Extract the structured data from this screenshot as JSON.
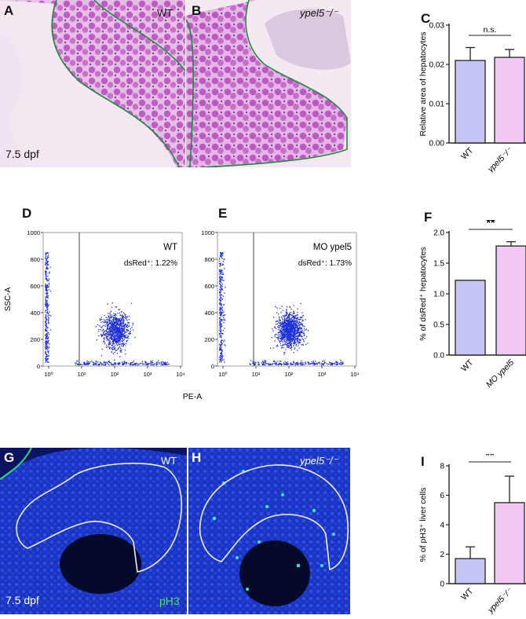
{
  "panels": {
    "A": {
      "letter": "A",
      "genotype": "WT",
      "stage": "7.5 dpf"
    },
    "B": {
      "letter": "B",
      "genotype": "ypel5⁻/⁻"
    },
    "C": {
      "letter": "C"
    },
    "D": {
      "letter": "D",
      "genotype": "WT",
      "stat": "dsRed⁺: 1.22%"
    },
    "E": {
      "letter": "E",
      "genotype": "MO ypel5",
      "stat": "dsRed⁺: 1.73%"
    },
    "F": {
      "letter": "F"
    },
    "G": {
      "letter": "G",
      "genotype": "WT",
      "stage": "7.5 dpf",
      "stain": "pH3"
    },
    "H": {
      "letter": "H",
      "genotype": "ypel5⁻/⁻"
    },
    "I": {
      "letter": "I"
    }
  },
  "flow": {
    "ylabel": "SSC-A",
    "xlabel": "PE-A",
    "yticks": [
      "0",
      "200",
      "400",
      "600",
      "800",
      "1000"
    ],
    "xticks": [
      "10⁰",
      "10¹",
      "10²",
      "10³",
      "10⁴"
    ]
  },
  "colors": {
    "wt_bar": "#c6c5f7",
    "mut_bar": "#f1c8f1",
    "he_stain": "#c75cc6",
    "flow_dots": "#1d2fd8",
    "dapi": "#1b36c4",
    "ph3": "#3fe6c8"
  },
  "chart_data": [
    {
      "id": "C",
      "type": "bar",
      "categories": [
        "WT",
        "ypel5⁻/⁻"
      ],
      "values": [
        0.021,
        0.0218
      ],
      "errors": [
        0.0033,
        0.002
      ],
      "ylabel": "Relative area of hepatocytes",
      "yticks": [
        "0.00",
        "0.01",
        "0.02",
        "0.03"
      ],
      "ylim": [
        0,
        0.03
      ],
      "significance": "n.s."
    },
    {
      "id": "F",
      "type": "bar",
      "categories": [
        "WT",
        "MO ypel5"
      ],
      "values": [
        1.22,
        1.78
      ],
      "errors": [
        0,
        0.07
      ],
      "ylabel": "% of dsRed⁺ hepatocytes",
      "yticks": [
        "0.0",
        "0.5",
        "1.0",
        "1.5",
        "2.0"
      ],
      "ylim": [
        0,
        2.0
      ],
      "significance": "**"
    },
    {
      "id": "I",
      "type": "bar",
      "categories": [
        "WT",
        "ypel5⁻/⁻"
      ],
      "values": [
        1.7,
        5.5
      ],
      "errors": [
        0.8,
        1.8
      ],
      "ylabel": "% of pH3⁺ liver cells",
      "yticks": [
        "0",
        "2",
        "4",
        "6",
        "8"
      ],
      "ylim": [
        0,
        8
      ],
      "significance": "**"
    }
  ]
}
